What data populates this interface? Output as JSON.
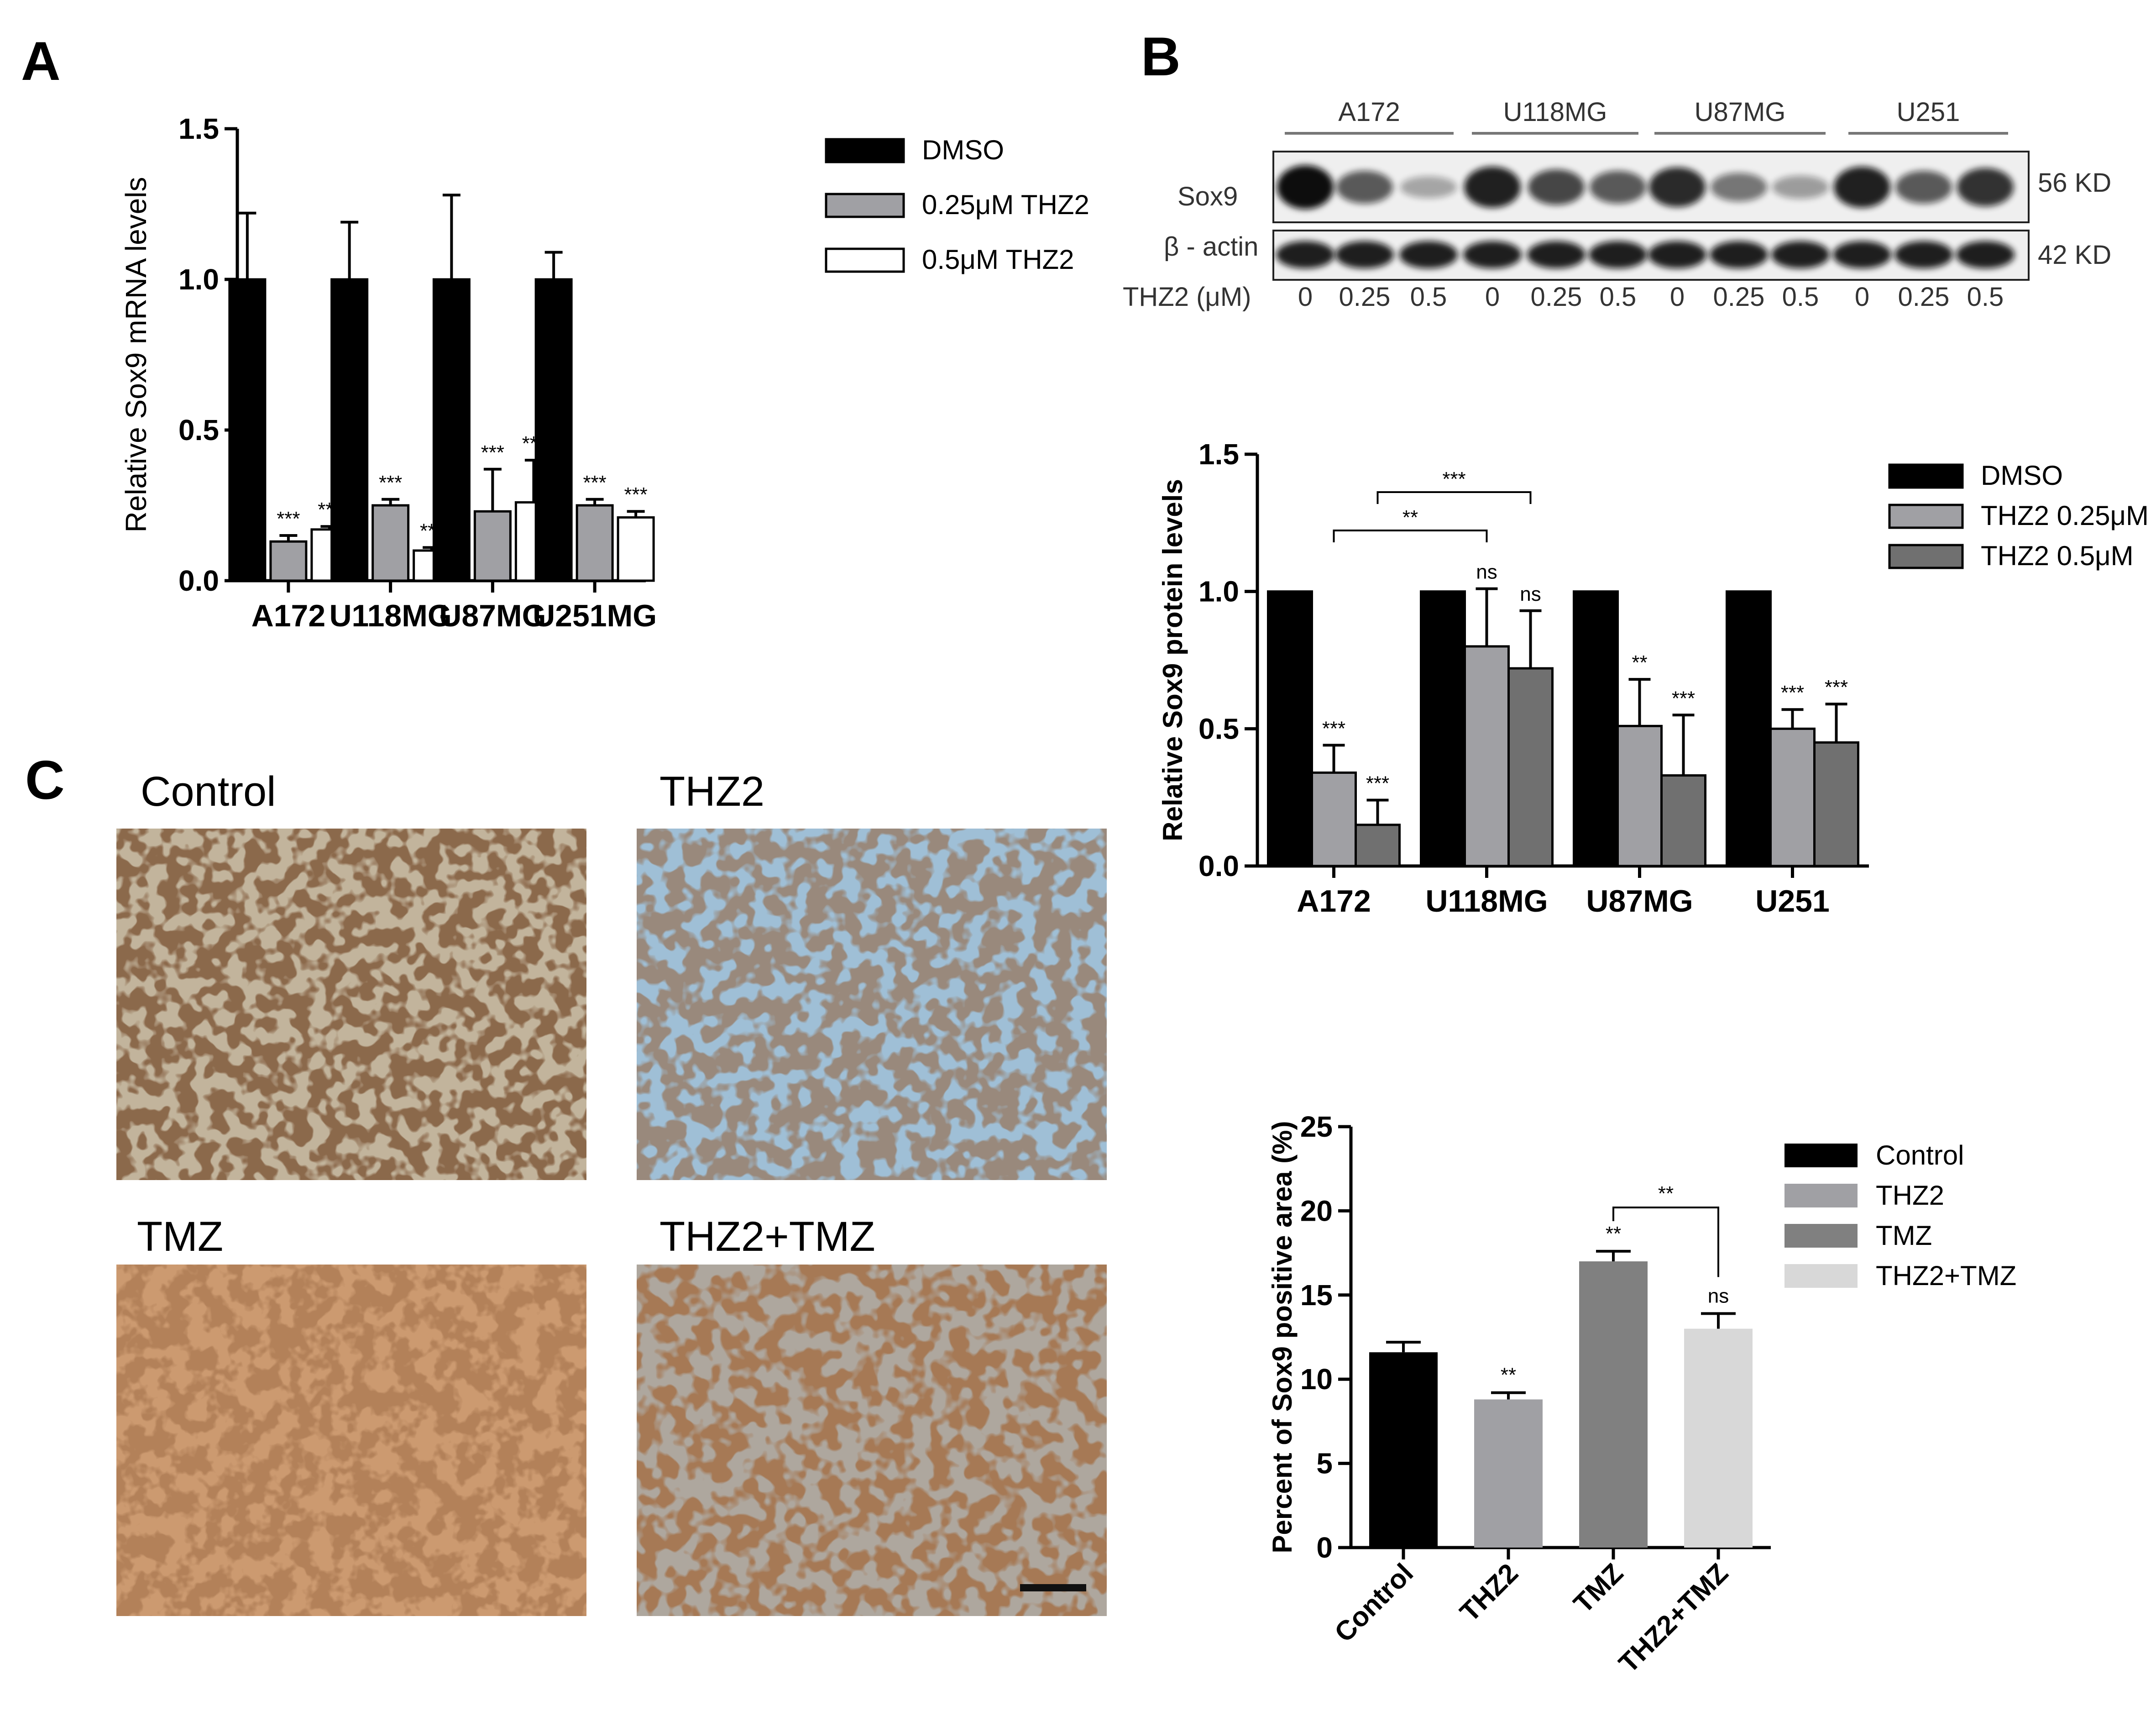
{
  "panels": {
    "a": "A",
    "b": "B",
    "c": "C"
  },
  "western_blot": {
    "cell_lines": [
      "A172",
      "U118MG",
      "U87MG",
      "U251"
    ],
    "rows": [
      "Sox9",
      "β - actin"
    ],
    "kd": [
      "56 KD",
      "42 KD"
    ],
    "dose_label": "THZ2 (μM)",
    "doses": [
      "0",
      "0.25",
      "0.5",
      "0",
      "0.25",
      "0.5",
      "0",
      "0.25",
      "0.5",
      "0",
      "0.25",
      "0.5"
    ],
    "sox9_intensity": [
      1.0,
      0.6,
      0.2,
      0.9,
      0.7,
      0.6,
      0.85,
      0.45,
      0.25,
      0.9,
      0.6,
      0.8
    ]
  },
  "micrographs": {
    "labels": [
      "Control",
      "THZ2",
      "TMZ",
      "THZ2+TMZ"
    ]
  },
  "chart_data": [
    {
      "type": "bar",
      "categories": [
        "A172",
        "U118MG",
        "U87MG",
        "U251MG"
      ],
      "ylabel": "Relative Sox9 mRNA levels",
      "ylim": [
        0,
        1.5
      ],
      "yticks": [
        "0.0",
        "0.5",
        "1.0",
        "1.5"
      ],
      "series": [
        {
          "name": "DMSO",
          "color": "#000000",
          "values": [
            1.0,
            1.0,
            1.0,
            1.0
          ],
          "errors": [
            0.22,
            0.19,
            0.28,
            0.09
          ],
          "stars": [
            "",
            "",
            "",
            ""
          ]
        },
        {
          "name": "0.25μM THZ2",
          "color": "#a0a0a4",
          "values": [
            0.13,
            0.25,
            0.23,
            0.25
          ],
          "errors": [
            0.02,
            0.02,
            0.14,
            0.02
          ],
          "stars": [
            "***",
            "***",
            "***",
            "***"
          ]
        },
        {
          "name": "0.5μM THZ2",
          "color": "#ffffff",
          "values": [
            0.17,
            0.1,
            0.26,
            0.21
          ],
          "errors": [
            0.01,
            0.01,
            0.14,
            0.02
          ],
          "stars": [
            "***",
            "***",
            "***",
            "***"
          ]
        }
      ],
      "legend": "top-right"
    },
    {
      "type": "bar",
      "categories": [
        "A172",
        "U118MG",
        "U87MG",
        "U251"
      ],
      "ylabel": "Relative Sox9 protein levels",
      "ylim": [
        0,
        1.5
      ],
      "yticks": [
        "0.0",
        "0.5",
        "1.0",
        "1.5"
      ],
      "series": [
        {
          "name": "DMSO",
          "color": "#000000",
          "values": [
            1.0,
            1.0,
            1.0,
            1.0
          ],
          "errors": [
            0,
            0,
            0,
            0
          ],
          "stars": [
            "",
            "",
            "",
            ""
          ]
        },
        {
          "name": "THZ2 0.25μM",
          "color": "#a0a0a4",
          "values": [
            0.34,
            0.8,
            0.51,
            0.5
          ],
          "errors": [
            0.1,
            0.21,
            0.17,
            0.07
          ],
          "stars": [
            "***",
            "ns",
            "**",
            "***"
          ]
        },
        {
          "name": "THZ2 0.5μM",
          "color": "#707070",
          "values": [
            0.15,
            0.72,
            0.33,
            0.45
          ],
          "errors": [
            0.09,
            0.21,
            0.22,
            0.14
          ],
          "stars": [
            "***",
            "ns",
            "***",
            "***"
          ]
        }
      ],
      "comparisons": [
        {
          "label": "**",
          "from": [
            0,
            1
          ],
          "to": [
            1,
            1
          ]
        },
        {
          "label": "***",
          "from": [
            0,
            2
          ],
          "to": [
            1,
            2
          ]
        }
      ],
      "legend": "top-right"
    },
    {
      "type": "bar",
      "categories": [
        "Control",
        "THZ2",
        "TMZ",
        "THZ2+TMZ"
      ],
      "ylabel": "Percent of Sox9 positive area (%)",
      "ylim": [
        0,
        25
      ],
      "yticks": [
        "0",
        "5",
        "10",
        "15",
        "20",
        "25"
      ],
      "values": [
        11.6,
        8.8,
        17.0,
        13.0
      ],
      "errors": [
        0.6,
        0.4,
        0.6,
        0.9
      ],
      "colors": [
        "#000000",
        "#a0a0a4",
        "#808080",
        "#d8d8d8"
      ],
      "stars": [
        "",
        "**",
        "**",
        "ns"
      ],
      "comparisons": [
        {
          "label": "**",
          "from": 2,
          "to": 3
        }
      ],
      "legend_labels": [
        "Control",
        "THZ2",
        "TMZ",
        "THZ2+TMZ"
      ],
      "legend": "top-right"
    }
  ]
}
